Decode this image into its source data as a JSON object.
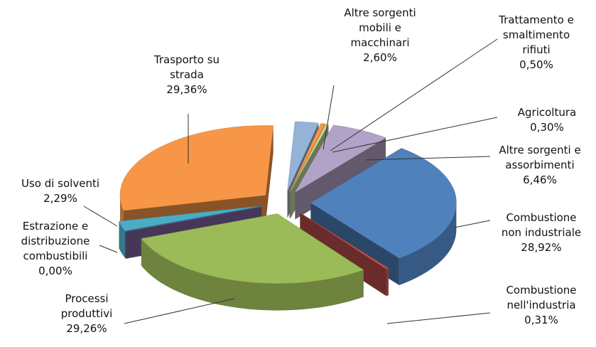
{
  "chart_data": {
    "type": "pie",
    "categories": [
      "Altre sorgenti mobili e macchinari",
      "Trattamento e smaltimento rifiuti",
      "Agricoltura",
      "Altre sorgenti e assorbimenti",
      "Combustione non industriale",
      "Combustione nell'industria",
      "Processi produttivi",
      "Estrazione e distribuzione combustibili",
      "Uso di solventi",
      "Trasporto su strada"
    ],
    "values": [
      2.6,
      0.5,
      0.3,
      6.46,
      28.92,
      0.31,
      29.26,
      0.0,
      2.29,
      29.36
    ],
    "value_labels": [
      "2,60%",
      "0,50%",
      "0,30%",
      "6,46%",
      "28,92%",
      "0,31%",
      "29,26%",
      "0,00%",
      "2,29%",
      "29,36%"
    ],
    "colors": [
      "#95b3d7",
      "#f79646",
      "#c3d69b",
      "#b3a2c7",
      "#4f81bd",
      "#c0504d",
      "#9bbb59",
      "#8064a2",
      "#4bacc6",
      "#f79646"
    ]
  }
}
